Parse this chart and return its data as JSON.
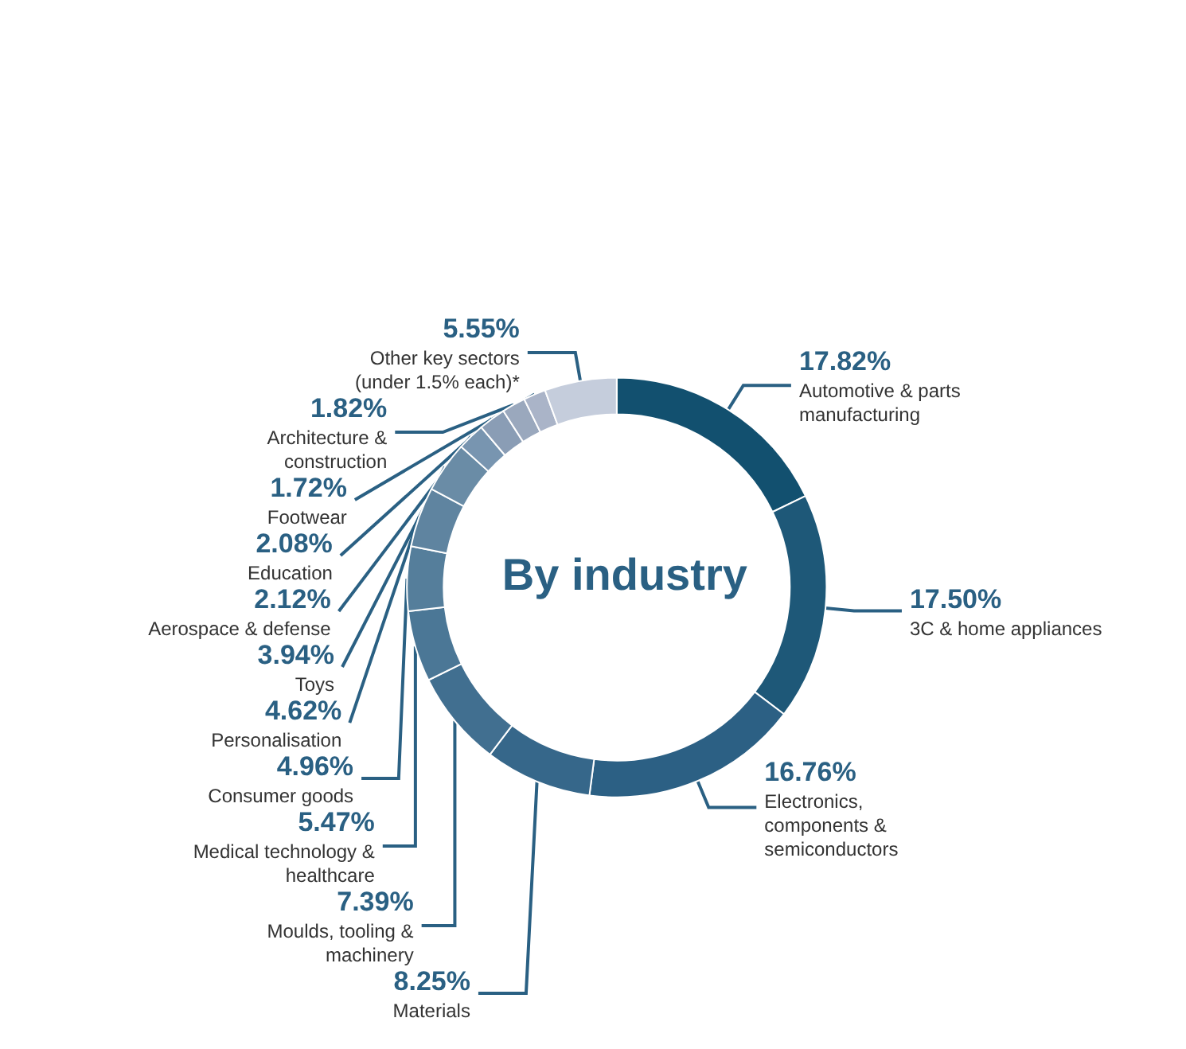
{
  "chart_data": {
    "type": "donut",
    "title": "By industry",
    "categories": [
      "Automotive & parts manufacturing",
      "3C & home appliances",
      "Electronics, components & semiconductors",
      "Materials",
      "Moulds, tooling & machinery",
      "Medical technology & healthcare",
      "Consumer goods",
      "Personalisation",
      "Toys",
      "Aerospace & defense",
      "Education",
      "Architecture & construction",
      "Footwear",
      "Other key sectors (under 1.5% each)*"
    ],
    "values": [
      17.82,
      17.5,
      16.76,
      8.25,
      7.39,
      5.47,
      4.96,
      4.62,
      3.94,
      2.12,
      2.08,
      1.82,
      1.72,
      5.55
    ],
    "value_labels": [
      "17.82%",
      "17.50%",
      "16.76%",
      "8.25%",
      "7.39%",
      "5.47%",
      "4.96%",
      "4.62%",
      "3.94%",
      "2.12%",
      "2.08%",
      "1.82%",
      "1.72%",
      "5.55%"
    ],
    "colors": [
      "#12506f",
      "#1e5878",
      "#2c6084",
      "#36678a",
      "#416f90",
      "#4b7796",
      "#557e9b",
      "#5f84a0",
      "#6a8ca6",
      "#7895b0",
      "#8a9db5",
      "#9aa8bd",
      "#aab4c8",
      "#c5cddc"
    ],
    "legend": false
  }
}
